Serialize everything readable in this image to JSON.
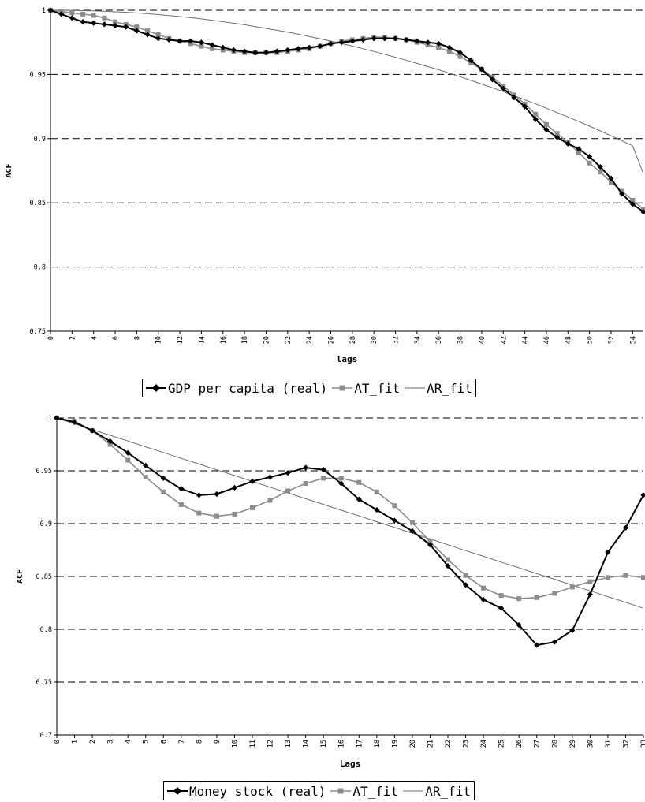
{
  "chart_data": [
    {
      "type": "line",
      "title": "",
      "xlabel": "lags",
      "ylabel": "ACF",
      "ylim": [
        0.75,
        1
      ],
      "yticks": [
        "0.75",
        "0.8",
        "0.85",
        "0.9",
        "0.95",
        "1"
      ],
      "xlim": [
        0,
        55
      ],
      "xticks": [
        "0",
        "2",
        "4",
        "6",
        "8",
        "10",
        "12",
        "14",
        "16",
        "18",
        "20",
        "22",
        "24",
        "26",
        "28",
        "30",
        "32",
        "34",
        "36",
        "38",
        "40",
        "42",
        "44",
        "46",
        "48",
        "50",
        "52",
        "54"
      ],
      "grid": "horizontal dashed",
      "legend_position": "bottom",
      "x": [
        0,
        1,
        2,
        3,
        4,
        5,
        6,
        7,
        8,
        9,
        10,
        11,
        12,
        13,
        14,
        15,
        16,
        17,
        18,
        19,
        20,
        21,
        22,
        23,
        24,
        25,
        26,
        27,
        28,
        29,
        30,
        31,
        32,
        33,
        34,
        35,
        36,
        37,
        38,
        39,
        40,
        41,
        42,
        43,
        44,
        45,
        46,
        47,
        48,
        49,
        50,
        51,
        52,
        53,
        54,
        55
      ],
      "series": [
        {
          "name": "GDP per capita (real)",
          "color": "#000000",
          "marker": "diamond",
          "values": [
            1.0,
            0.997,
            0.994,
            0.991,
            0.99,
            0.989,
            0.988,
            0.987,
            0.984,
            0.981,
            0.978,
            0.977,
            0.976,
            0.976,
            0.975,
            0.973,
            0.971,
            0.969,
            0.968,
            0.967,
            0.967,
            0.968,
            0.969,
            0.97,
            0.971,
            0.972,
            0.974,
            0.975,
            0.976,
            0.977,
            0.978,
            0.978,
            0.978,
            0.977,
            0.976,
            0.975,
            0.974,
            0.971,
            0.967,
            0.961,
            0.954,
            0.946,
            0.939,
            0.932,
            0.925,
            0.915,
            0.907,
            0.901,
            0.896,
            0.892,
            0.886,
            0.878,
            0.869,
            0.857,
            0.849,
            0.843
          ]
        },
        {
          "name": "AT_fit",
          "color": "#8c8c8c",
          "marker": "square",
          "values": [
            1.0,
            0.999,
            0.998,
            0.997,
            0.996,
            0.994,
            0.991,
            0.989,
            0.987,
            0.984,
            0.981,
            0.978,
            0.976,
            0.974,
            0.972,
            0.97,
            0.969,
            0.968,
            0.967,
            0.967,
            0.967,
            0.967,
            0.968,
            0.969,
            0.97,
            0.972,
            0.974,
            0.976,
            0.977,
            0.978,
            0.979,
            0.979,
            0.978,
            0.977,
            0.975,
            0.973,
            0.971,
            0.968,
            0.964,
            0.959,
            0.954,
            0.948,
            0.941,
            0.934,
            0.927,
            0.919,
            0.911,
            0.904,
            0.897,
            0.889,
            0.881,
            0.874,
            0.866,
            0.859,
            0.852,
            0.845
          ]
        },
        {
          "name": "AR_fit",
          "color": "#6e6e6e",
          "marker": "none",
          "values": [
            1.0,
            1.0,
            0.9999,
            0.9997,
            0.9995,
            0.9992,
            0.9988,
            0.9984,
            0.9979,
            0.9973,
            0.9966,
            0.9959,
            0.9951,
            0.9942,
            0.9933,
            0.9922,
            0.9911,
            0.9899,
            0.9887,
            0.9873,
            0.9859,
            0.9844,
            0.9829,
            0.9813,
            0.9796,
            0.9778,
            0.976,
            0.9741,
            0.9721,
            0.97,
            0.9679,
            0.9657,
            0.9634,
            0.9611,
            0.9586,
            0.9561,
            0.9536,
            0.9509,
            0.9482,
            0.9454,
            0.9425,
            0.9396,
            0.9366,
            0.9335,
            0.9303,
            0.9271,
            0.9237,
            0.9203,
            0.9169,
            0.9133,
            0.9097,
            0.906,
            0.9022,
            0.8984,
            0.8944,
            0.8726
          ]
        }
      ]
    },
    {
      "type": "line",
      "title": "",
      "xlabel": "Lags",
      "ylabel": "ACF",
      "ylim": [
        0.7,
        1
      ],
      "yticks": [
        "0.7",
        "0.75",
        "0.8",
        "0.85",
        "0.9",
        "0.95",
        "1"
      ],
      "xlim": [
        0,
        33
      ],
      "xticks": [
        "0",
        "1",
        "2",
        "3",
        "4",
        "5",
        "6",
        "7",
        "8",
        "9",
        "10",
        "11",
        "12",
        "13",
        "14",
        "15",
        "16",
        "17",
        "18",
        "19",
        "20",
        "21",
        "22",
        "23",
        "24",
        "25",
        "26",
        "27",
        "28",
        "29",
        "30",
        "31",
        "32",
        "33"
      ],
      "grid": "horizontal dashed",
      "legend_position": "bottom",
      "x": [
        0,
        1,
        2,
        3,
        4,
        5,
        6,
        7,
        8,
        9,
        10,
        11,
        12,
        13,
        14,
        15,
        16,
        17,
        18,
        19,
        20,
        21,
        22,
        23,
        24,
        25,
        26,
        27,
        28,
        29,
        30,
        31,
        32,
        33
      ],
      "series": [
        {
          "name": "Money stock (real)",
          "color": "#000000",
          "marker": "diamond",
          "values": [
            1.0,
            0.996,
            0.988,
            0.978,
            0.967,
            0.955,
            0.943,
            0.933,
            0.927,
            0.928,
            0.934,
            0.94,
            0.944,
            0.948,
            0.953,
            0.951,
            0.938,
            0.923,
            0.913,
            0.903,
            0.893,
            0.88,
            0.86,
            0.842,
            0.828,
            0.82,
            0.804,
            0.785,
            0.788,
            0.799,
            0.833,
            0.873,
            0.896,
            0.927
          ]
        },
        {
          "name": "AT_fit",
          "color": "#8c8c8c",
          "marker": "square",
          "values": [
            1.0,
            0.997,
            0.988,
            0.975,
            0.96,
            0.944,
            0.93,
            0.918,
            0.91,
            0.907,
            0.909,
            0.915,
            0.922,
            0.931,
            0.938,
            0.943,
            0.943,
            0.939,
            0.93,
            0.917,
            0.901,
            0.883,
            0.866,
            0.851,
            0.839,
            0.832,
            0.829,
            0.83,
            0.834,
            0.84,
            0.845,
            0.849,
            0.851,
            0.849
          ]
        },
        {
          "name": "AR_fit",
          "color": "#6e6e6e",
          "marker": "none",
          "values": [
            1.0,
            0.9945,
            0.9891,
            0.9836,
            0.9782,
            0.9727,
            0.9673,
            0.9618,
            0.9564,
            0.9509,
            0.9455,
            0.94,
            0.9345,
            0.9291,
            0.9236,
            0.9182,
            0.9127,
            0.9073,
            0.9018,
            0.8964,
            0.8909,
            0.8855,
            0.88,
            0.8745,
            0.8691,
            0.8636,
            0.8582,
            0.8527,
            0.8473,
            0.8418,
            0.8364,
            0.8309,
            0.8255,
            0.82
          ]
        }
      ]
    }
  ],
  "legends": [
    {
      "items": [
        {
          "label": "GDP per capita (real)",
          "color": "#000000"
        },
        {
          "label": "AT_fit",
          "color": "#8c8c8c"
        },
        {
          "label": "AR_fit",
          "color": "#6e6e6e"
        }
      ]
    },
    {
      "items": [
        {
          "label": "Money stock (real)",
          "color": "#000000"
        },
        {
          "label": "AT_fit",
          "color": "#8c8c8c"
        },
        {
          "label": "AR_fit",
          "color": "#6e6e6e"
        }
      ]
    }
  ]
}
